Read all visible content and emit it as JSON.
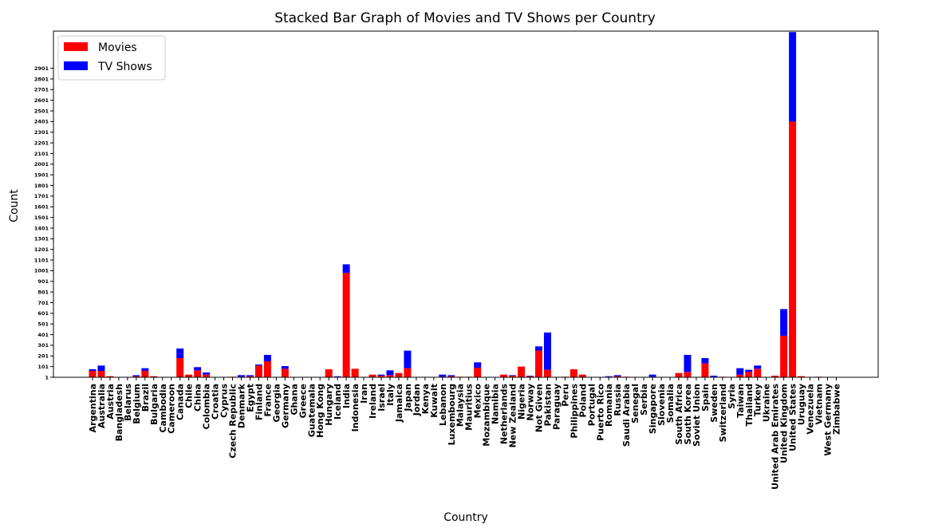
{
  "chart_data": {
    "type": "bar",
    "stacked": true,
    "title": "Stacked Bar Graph of Movies and TV Shows per Country",
    "xlabel": "Country",
    "ylabel": "Count",
    "yticks": [
      1,
      101,
      201,
      301,
      401,
      501,
      601,
      701,
      801,
      901,
      1001,
      1101,
      1201,
      1301,
      1401,
      1501,
      1601,
      1701,
      1801,
      1901,
      2001,
      2101,
      2201,
      2301,
      2401,
      2501,
      2601,
      2701,
      2801,
      2901
    ],
    "ylim": [
      1,
      3250
    ],
    "legend_position": "top-left",
    "categories": [
      "Argentina",
      "Australia",
      "Austria",
      "Bangladesh",
      "Belarus",
      "Belgium",
      "Brazil",
      "Bulgaria",
      "Cambodia",
      "Cameroon",
      "Canada",
      "Chile",
      "China",
      "Colombia",
      "Croatia",
      "Cyprus",
      "Czech Republic",
      "Denmark",
      "Egypt",
      "Finland",
      "France",
      "Georgia",
      "Germany",
      "Ghana",
      "Greece",
      "Guatemala",
      "Hong Kong",
      "Hungary",
      "Iceland",
      "India",
      "Indonesia",
      "Iran",
      "Ireland",
      "Israel",
      "Italy",
      "Jamaica",
      "Japan",
      "Jordan",
      "Kenya",
      "Kuwait",
      "Lebanon",
      "Luxembourg",
      "Malaysia",
      "Mauritius",
      "Mexico",
      "Mozambique",
      "Namibia",
      "Netherlands",
      "New Zealand",
      "Nigeria",
      "Norway",
      "Not Given",
      "Pakistan",
      "Paraguay",
      "Peru",
      "Philippines",
      "Poland",
      "Portugal",
      "Puerto Rico",
      "Romania",
      "Russia",
      "Saudi Arabia",
      "Senegal",
      "Serbia",
      "Singapore",
      "Slovenia",
      "Somalia",
      "South Africa",
      "South Korea",
      "Soviet Union",
      "Spain",
      "Sweden",
      "Switzerland",
      "Syria",
      "Taiwan",
      "Thailand",
      "Turkey",
      "Ukraine",
      "United Arab Emirates",
      "United Kingdom",
      "United States",
      "Uruguay",
      "Venezuela",
      "Vietnam",
      "West Germany",
      "Zimbabwe"
    ],
    "series": [
      {
        "name": "Movies",
        "color": "#ff0000",
        "values": [
          60,
          60,
          10,
          0,
          0,
          10,
          60,
          10,
          0,
          0,
          180,
          25,
          65,
          25,
          0,
          0,
          5,
          5,
          10,
          110,
          150,
          0,
          80,
          0,
          0,
          0,
          0,
          75,
          5,
          980,
          80,
          0,
          25,
          15,
          20,
          40,
          85,
          0,
          0,
          0,
          5,
          10,
          5,
          5,
          90,
          0,
          0,
          25,
          15,
          100,
          10,
          250,
          70,
          0,
          5,
          75,
          25,
          0,
          0,
          5,
          10,
          5,
          0,
          0,
          5,
          0,
          0,
          40,
          50,
          0,
          130,
          5,
          5,
          0,
          25,
          50,
          80,
          0,
          15,
          390,
          2400,
          10,
          0,
          5,
          0,
          0
        ]
      },
      {
        "name": "TV Shows",
        "color": "#0000ff",
        "values": [
          15,
          50,
          0,
          0,
          0,
          10,
          25,
          0,
          0,
          0,
          90,
          0,
          30,
          20,
          0,
          0,
          0,
          15,
          10,
          10,
          60,
          0,
          25,
          0,
          0,
          0,
          0,
          0,
          5,
          80,
          0,
          0,
          0,
          10,
          45,
          0,
          165,
          0,
          0,
          0,
          20,
          10,
          0,
          0,
          50,
          0,
          0,
          0,
          5,
          0,
          5,
          40,
          350,
          0,
          0,
          0,
          0,
          0,
          0,
          5,
          10,
          0,
          0,
          0,
          20,
          0,
          0,
          0,
          160,
          0,
          50,
          10,
          0,
          0,
          60,
          20,
          30,
          0,
          0,
          250,
          840,
          0,
          0,
          0,
          0,
          0
        ]
      }
    ]
  }
}
